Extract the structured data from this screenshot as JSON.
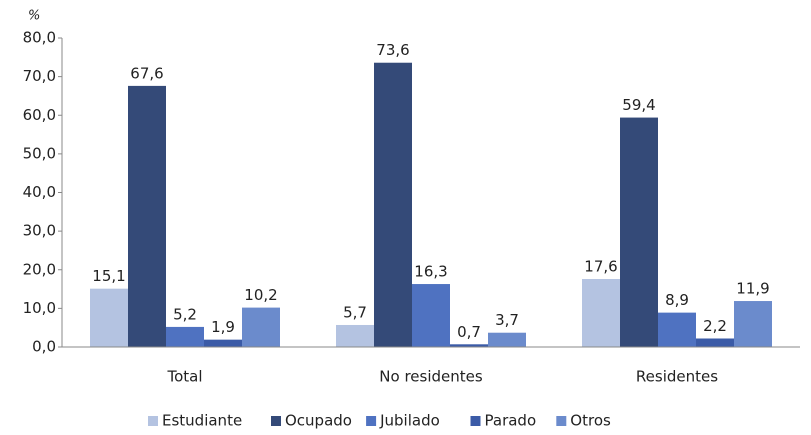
{
  "chart_data": {
    "type": "bar",
    "ylabel": "%",
    "categories": [
      "Total",
      "No residentes",
      "Residentes"
    ],
    "series": [
      {
        "name": "Estudiante",
        "color": "#b4c3e1",
        "values": [
          15.1,
          5.7,
          17.6
        ],
        "value_labels": [
          "15,1",
          "5,7",
          "17,6"
        ]
      },
      {
        "name": "Ocupado",
        "color": "#344a78",
        "values": [
          67.6,
          73.6,
          59.4
        ],
        "value_labels": [
          "67,6",
          "73,6",
          "59,4"
        ]
      },
      {
        "name": "Jubilado",
        "color": "#4f72c1",
        "values": [
          5.2,
          16.3,
          8.9
        ],
        "value_labels": [
          "5,2",
          "16,3",
          "8,9"
        ]
      },
      {
        "name": "Parado",
        "color": "#3b5ba7",
        "values": [
          1.9,
          0.7,
          2.2
        ],
        "value_labels": [
          "1,9",
          "0,7",
          "2,2"
        ]
      },
      {
        "name": "Otros",
        "color": "#6b8bcc",
        "values": [
          10.2,
          3.7,
          11.9
        ],
        "value_labels": [
          "10,2",
          "3,7",
          "11,9"
        ]
      }
    ],
    "ylim": [
      0,
      80
    ],
    "yticks": [
      {
        "value": 0,
        "label": "0,0"
      },
      {
        "value": 10,
        "label": "10,0"
      },
      {
        "value": 20,
        "label": "20,0"
      },
      {
        "value": 30,
        "label": "30,0"
      },
      {
        "value": 40,
        "label": "40,0"
      },
      {
        "value": 50,
        "label": "50,0"
      },
      {
        "value": 60,
        "label": "60,0"
      },
      {
        "value": 70,
        "label": "70,0"
      },
      {
        "value": 80,
        "label": "80,0"
      }
    ],
    "grid": false,
    "legend": "bottom"
  }
}
